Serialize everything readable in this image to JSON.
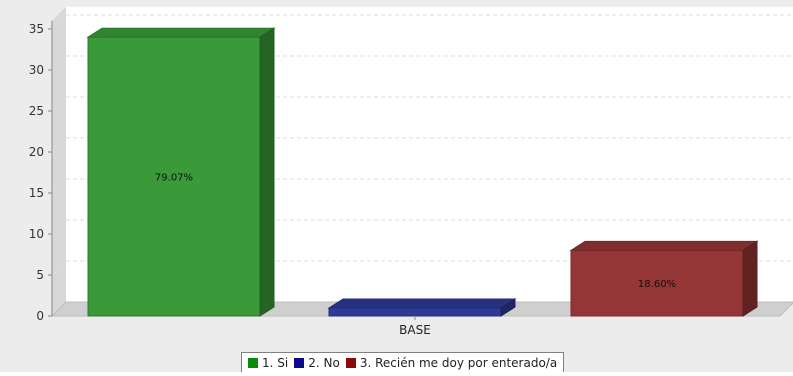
{
  "chart_data": {
    "type": "bar",
    "render": "3d",
    "categories": [
      "BASE"
    ],
    "series": [
      {
        "name": "1. Si",
        "values": [
          34
        ],
        "label": "79.07%",
        "color": "#3a9a3a"
      },
      {
        "name": "2. No",
        "values": [
          0
        ],
        "label": "",
        "color": "#2f3a96"
      },
      {
        "name": "3. Recién me doy por enterado/a",
        "values": [
          8
        ],
        "label": "18.60%",
        "color": "#953535"
      }
    ],
    "yticks": [
      0,
      5,
      10,
      15,
      20,
      25,
      30,
      35
    ],
    "ylim": [
      0,
      36
    ],
    "grid": true,
    "legend_position": "bottom",
    "title": "",
    "xlabel": "",
    "ylabel": ""
  }
}
